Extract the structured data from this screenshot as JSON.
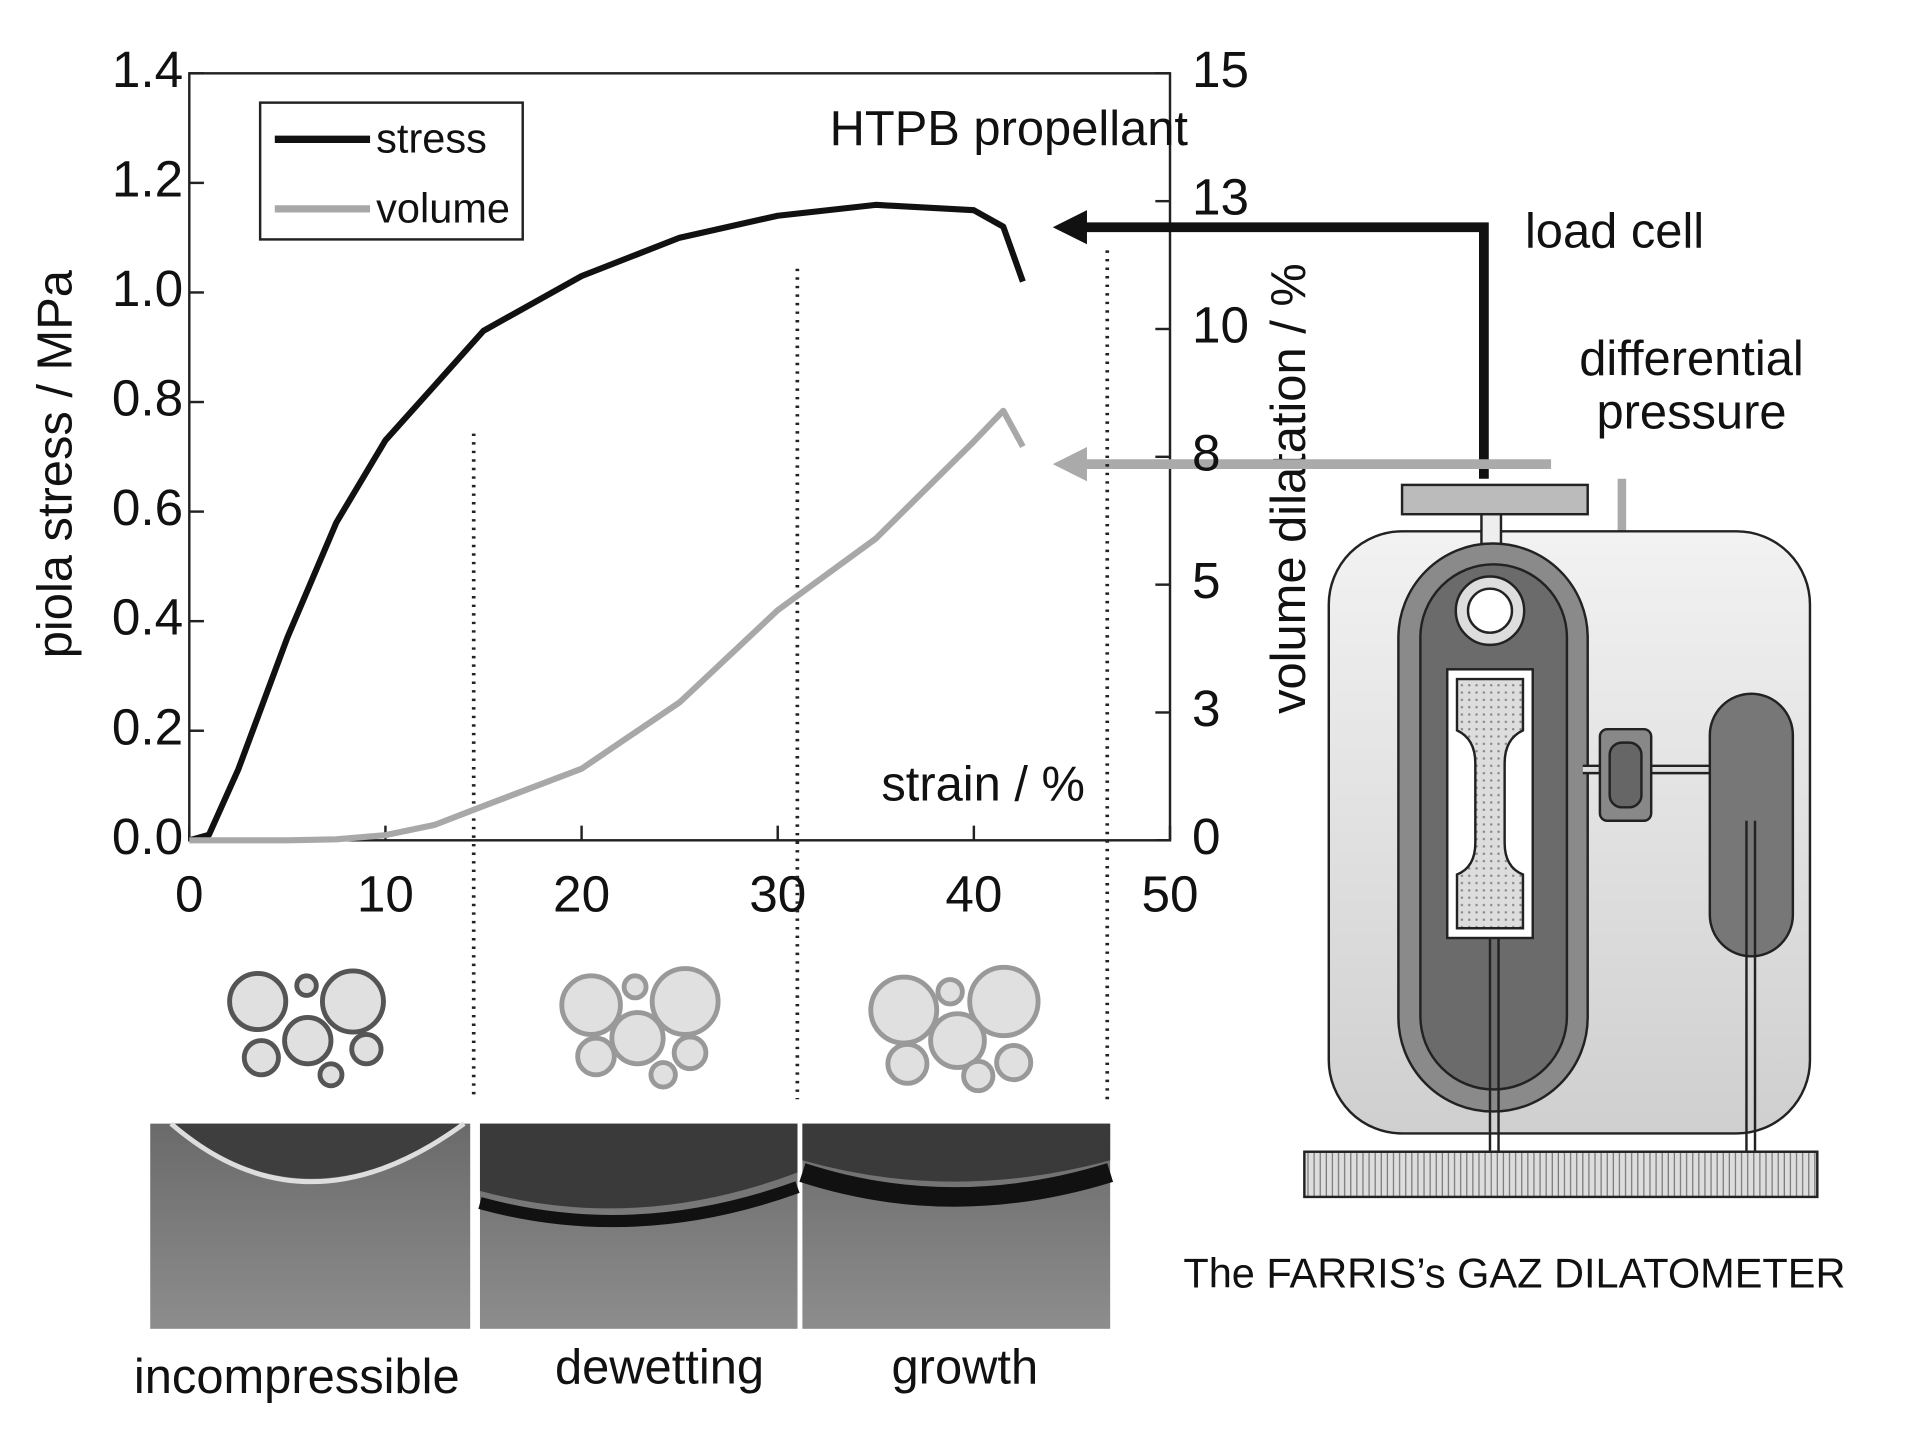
{
  "chart_data": {
    "type": "line",
    "xlabel": "strain / %",
    "ylabel": "piola stress / MPa",
    "y2label": "volume dilatation / %",
    "x": [
      0,
      1,
      2.5,
      5,
      7.5,
      10,
      12.5,
      15,
      20,
      25,
      30,
      35,
      40,
      41.5,
      42.5
    ],
    "series": [
      {
        "name": "stress",
        "color": "#111111",
        "values": [
          0,
          0.01,
          0.13,
          0.37,
          0.58,
          0.73,
          0.83,
          0.93,
          1.03,
          1.1,
          1.14,
          1.16,
          1.15,
          1.12,
          1.02
        ]
      },
      {
        "name": "volume",
        "color": "#a8a8a8",
        "axis": "y2",
        "values": [
          0,
          0,
          0,
          0,
          0.02,
          0.1,
          0.3,
          0.67,
          1.4,
          2.7,
          4.5,
          5.9,
          7.8,
          8.4,
          7.7
        ]
      }
    ],
    "xlim": [
      0,
      50
    ],
    "xticks": [
      0,
      10,
      20,
      30,
      40,
      50
    ],
    "ylim": [
      0,
      1.4
    ],
    "yticks": [
      {
        "value": 0,
        "label": "0.0"
      },
      0.2,
      0.4,
      0.6,
      0.8,
      {
        "value": 1,
        "label": "1.0"
      },
      1.2,
      1.4
    ],
    "y2lim": [
      0,
      15
    ],
    "y2ticks": [
      0,
      {
        "value": 2.5,
        "label": "3"
      },
      5,
      {
        "value": 7.5,
        "label": "8"
      },
      10,
      {
        "value": 12.5,
        "label": "13"
      },
      15
    ],
    "region_boundaries": [
      14.5,
      31,
      46.8
    ],
    "legend": "upper left",
    "annotations": [
      "HTPB propellant",
      "load cell",
      "differential pressure",
      "incompressible",
      "dewetting",
      "growth",
      "The FARRIS’s GAZ DILATOMETER"
    ]
  }
}
